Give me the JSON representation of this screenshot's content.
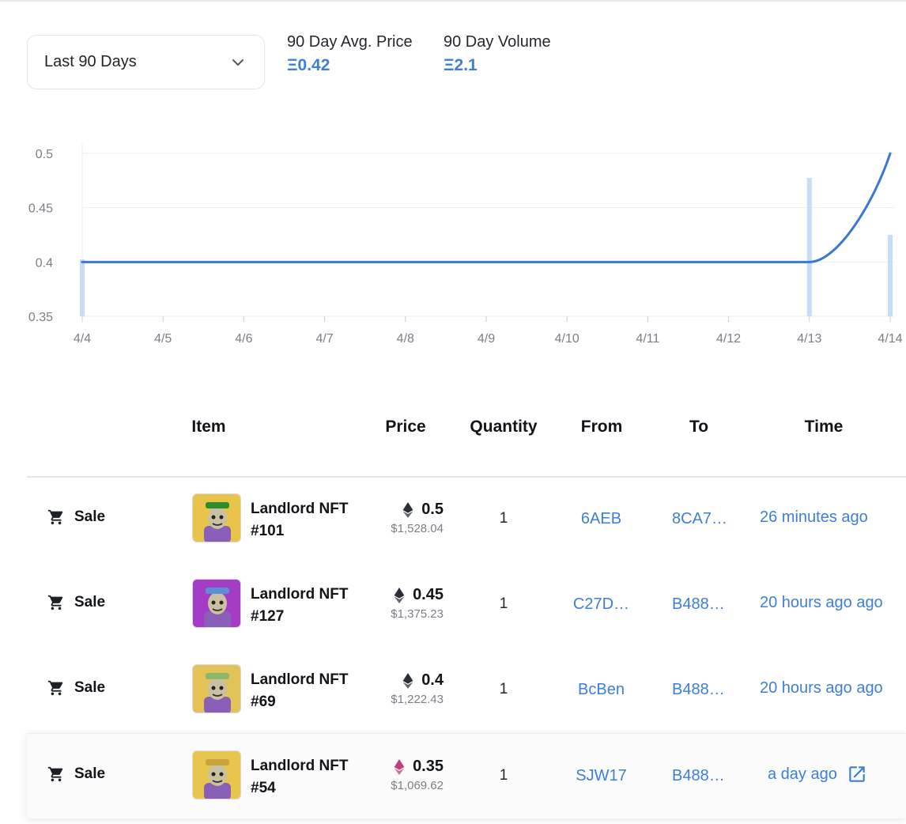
{
  "filter": {
    "selected": "Last 90 Days"
  },
  "stats": [
    {
      "label": "90 Day Avg. Price",
      "value": "Ξ0.42"
    },
    {
      "label": "90 Day Volume",
      "value": "Ξ2.1"
    }
  ],
  "colors": {
    "accent": "#3d7fd8",
    "line": "#3b78d6",
    "volume_bar": "#c6dcf7",
    "grid": "#eceef1"
  },
  "chart_data": {
    "type": "line",
    "title": "",
    "xlabel": "",
    "ylabel": "",
    "x": [
      "4/4",
      "4/5",
      "4/6",
      "4/7",
      "4/8",
      "4/9",
      "4/10",
      "4/11",
      "4/12",
      "4/13",
      "4/14"
    ],
    "series": [
      {
        "values": [
          0.4,
          0.4,
          0.4,
          0.4,
          0.4,
          0.4,
          0.4,
          0.4,
          0.4,
          0.4,
          0.5
        ]
      }
    ],
    "volume": [
      0.35,
      0,
      0,
      0,
      0,
      0,
      0,
      0,
      0,
      0.85,
      0.5
    ],
    "y_ticks": [
      "0.5",
      "0.45",
      "0.4",
      "0.35"
    ],
    "ylim": [
      0.35,
      0.5
    ],
    "grid": true
  },
  "table": {
    "headers": [
      "Item",
      "Price",
      "Quantity",
      "From",
      "To",
      "Time"
    ],
    "rows": [
      {
        "event": "Sale",
        "name": "Landlord NFT #101",
        "price": "0.5",
        "usd": "$1,528.04",
        "qty": "1",
        "from": "6AEB",
        "to": "8CA7…",
        "time": "26 minutes ago",
        "avatar_bg": "#e9c44a",
        "hat": "#2e8b2e",
        "eth_color": "#2b2f36"
      },
      {
        "event": "Sale",
        "name": "Landlord NFT #127",
        "price": "0.45",
        "usd": "$1,375.23",
        "qty": "1",
        "from": "C27D…",
        "to": "B488…",
        "time": "20 hours ago ago",
        "avatar_bg": "#a43cc6",
        "hat": "#5d8fd6",
        "eth_color": "#2b2f36"
      },
      {
        "event": "Sale",
        "name": "Landlord NFT #69",
        "price": "0.4",
        "usd": "$1,222.43",
        "qty": "1",
        "from": "BcBen",
        "to": "B488…",
        "time": "20 hours ago ago",
        "avatar_bg": "#e3c25a",
        "hat": "#8db86a",
        "eth_color": "#2b2f36"
      },
      {
        "event": "Sale",
        "name": "Landlord NFT #54",
        "price": "0.35",
        "usd": "$1,069.62",
        "qty": "1",
        "from": "SJW17",
        "to": "B488…",
        "time": "a day ago",
        "avatar_bg": "#e8c64e",
        "hat": "#c9a23b",
        "eth_color": "#c2407a"
      }
    ]
  }
}
